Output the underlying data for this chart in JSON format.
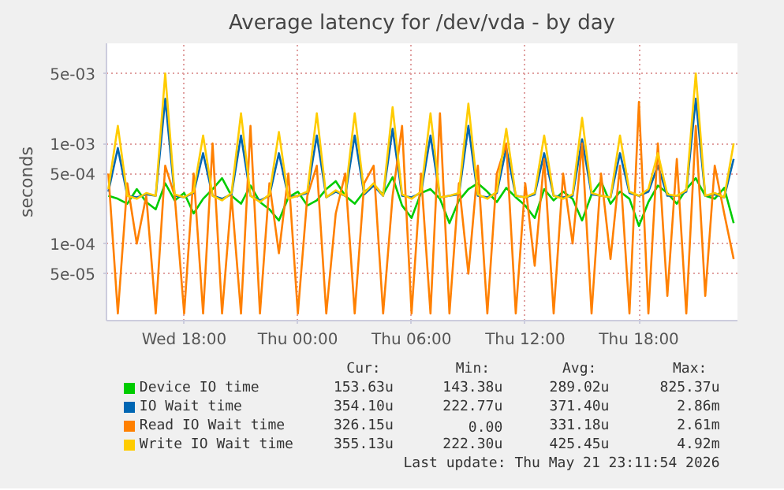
{
  "chart_data": {
    "type": "line",
    "title": "Average latency for /dev/vda - by day",
    "ylabel": "seconds",
    "log": "y",
    "grid": true,
    "legend": "bottom",
    "x": [
      "2026-05-20T14:00",
      "2026-05-20T14:30",
      "2026-05-20T15:00",
      "2026-05-20T15:30",
      "2026-05-20T16:00",
      "2026-05-20T16:30",
      "2026-05-20T17:00",
      "2026-05-20T17:30",
      "2026-05-20T18:00",
      "2026-05-20T18:30",
      "2026-05-20T19:00",
      "2026-05-20T19:30",
      "2026-05-20T20:00",
      "2026-05-20T20:30",
      "2026-05-20T21:00",
      "2026-05-20T21:30",
      "2026-05-20T22:00",
      "2026-05-20T22:30",
      "2026-05-20T23:00",
      "2026-05-20T23:30",
      "2026-05-21T00:00",
      "2026-05-21T00:30",
      "2026-05-21T01:00",
      "2026-05-21T01:30",
      "2026-05-21T02:00",
      "2026-05-21T02:30",
      "2026-05-21T03:00",
      "2026-05-21T03:30",
      "2026-05-21T04:00",
      "2026-05-21T04:30",
      "2026-05-21T05:00",
      "2026-05-21T05:30",
      "2026-05-21T06:00",
      "2026-05-21T06:30",
      "2026-05-21T07:00",
      "2026-05-21T07:30",
      "2026-05-21T08:00",
      "2026-05-21T08:30",
      "2026-05-21T09:00",
      "2026-05-21T09:30",
      "2026-05-21T10:00",
      "2026-05-21T10:30",
      "2026-05-21T11:00",
      "2026-05-21T11:30",
      "2026-05-21T12:00",
      "2026-05-21T12:30",
      "2026-05-21T13:00",
      "2026-05-21T13:30",
      "2026-05-21T14:00",
      "2026-05-21T14:30",
      "2026-05-21T15:00",
      "2026-05-21T15:30",
      "2026-05-21T16:00",
      "2026-05-21T16:30",
      "2026-05-21T17:00",
      "2026-05-21T17:30",
      "2026-05-21T18:00",
      "2026-05-21T18:30",
      "2026-05-21T19:00",
      "2026-05-21T19:30",
      "2026-05-21T20:00",
      "2026-05-21T20:30",
      "2026-05-21T21:00",
      "2026-05-21T21:30",
      "2026-05-21T22:00",
      "2026-05-21T22:30",
      "2026-05-21T23:00"
    ],
    "xlim": [
      "2026-05-20T13:54",
      "2026-05-21T23:12"
    ],
    "xticks": [
      {
        "value": "2026-05-20T18:00",
        "label": "Wed 18:00"
      },
      {
        "value": "2026-05-21T00:00",
        "label": "Thu 00:00"
      },
      {
        "value": "2026-05-21T06:00",
        "label": "Thu 06:00"
      },
      {
        "value": "2026-05-21T12:00",
        "label": "Thu 12:00"
      },
      {
        "value": "2026-05-21T18:00",
        "label": "Thu 18:00"
      }
    ],
    "ylim": [
      1.7e-05,
      0.01
    ],
    "yticks": [
      {
        "value": 5e-05,
        "label": "5e-05"
      },
      {
        "value": 0.0001,
        "label": "1e-04"
      },
      {
        "value": 0.0005,
        "label": "5e-04"
      },
      {
        "value": 0.001,
        "label": "1e-03"
      },
      {
        "value": 0.005,
        "label": "5e-03"
      }
    ],
    "series": [
      {
        "name": "Device IO time",
        "color": "#00cc00",
        "values": [
          0.0003,
          0.00028,
          0.00025,
          0.00035,
          0.00026,
          0.00022,
          0.0004,
          0.00027,
          0.00032,
          0.0002,
          0.00028,
          0.00035,
          0.00045,
          0.0003,
          0.00025,
          0.00038,
          0.00026,
          0.00022,
          0.00017,
          0.00029,
          0.00033,
          0.00024,
          0.00027,
          0.00035,
          0.00042,
          0.0003,
          0.00025,
          0.00033,
          0.00038,
          0.00031,
          0.00046,
          0.00024,
          0.00018,
          0.00032,
          0.00035,
          0.00028,
          0.00016,
          0.00027,
          0.00035,
          0.0004,
          0.00033,
          0.00026,
          0.00036,
          0.00029,
          0.00024,
          0.00018,
          0.00035,
          0.00027,
          0.00033,
          0.00028,
          0.00017,
          0.00031,
          0.00042,
          0.00025,
          0.00033,
          0.00028,
          0.00015,
          0.00026,
          0.00038,
          0.00032,
          0.00025,
          0.00035,
          0.00045,
          0.0003,
          0.00028,
          0.00036,
          0.00016
        ]
      },
      {
        "name": "IO Wait time",
        "color": "#0066b3",
        "values": [
          0.00033,
          0.0009,
          0.0003,
          0.00029,
          0.00031,
          0.0003,
          0.0028,
          0.0003,
          0.00029,
          0.00032,
          0.0008,
          0.0003,
          0.00028,
          0.00031,
          0.0012,
          0.0003,
          0.00027,
          0.0003,
          0.0008,
          0.00029,
          0.0003,
          0.00032,
          0.0012,
          0.00029,
          0.00033,
          0.0003,
          0.0012,
          0.00031,
          0.00038,
          0.0003,
          0.0014,
          0.0003,
          0.00029,
          0.00032,
          0.0012,
          0.00029,
          0.0003,
          0.00031,
          0.0015,
          0.0003,
          0.00029,
          0.00032,
          0.0009,
          0.0003,
          0.00029,
          0.00031,
          0.0008,
          0.0003,
          0.00029,
          0.0003,
          0.0011,
          0.00031,
          0.0003,
          0.00029,
          0.0008,
          0.00032,
          0.0003,
          0.00033,
          0.0006,
          0.0003,
          0.0003,
          0.00033,
          0.0028,
          0.0003,
          0.00031,
          0.00029,
          0.0007
        ]
      },
      {
        "name": "Read IO Wait time",
        "color": "#ff8000",
        "values": [
          0.0005,
          2e-05,
          0.0004,
          0.0001,
          0.0003,
          2e-05,
          0.0006,
          0.0003,
          2e-05,
          0.0005,
          2e-05,
          0.001,
          2e-05,
          0.0003,
          2e-05,
          0.0015,
          2e-05,
          0.0004,
          8e-05,
          0.0005,
          2e-05,
          0.0003,
          0.0006,
          2e-05,
          0.0002,
          0.0005,
          2e-05,
          0.0004,
          0.0006,
          2e-05,
          0.0003,
          0.0015,
          2e-05,
          0.0005,
          2e-05,
          0.002,
          2e-05,
          0.0004,
          5e-05,
          0.0006,
          2e-05,
          0.0005,
          0.001,
          2e-05,
          0.0004,
          6e-05,
          0.0007,
          2e-05,
          0.0005,
          0.0001,
          0.001,
          2e-05,
          0.0005,
          7e-05,
          0.0006,
          2e-05,
          0.0026,
          2e-05,
          0.001,
          3e-05,
          0.0007,
          2e-05,
          0.0015,
          3e-05,
          0.0006,
          0.0002,
          7e-05
        ]
      },
      {
        "name": "Write IO Wait time",
        "color": "#ffcc00",
        "values": [
          0.00035,
          0.0015,
          0.0003,
          0.00028,
          0.00032,
          0.0003,
          0.005,
          0.00031,
          0.00029,
          0.00033,
          0.0012,
          0.0003,
          0.00027,
          0.00032,
          0.002,
          0.0003,
          0.00026,
          0.00031,
          0.0013,
          0.00028,
          0.0003,
          0.00033,
          0.002,
          0.00029,
          0.00034,
          0.0003,
          0.002,
          0.00032,
          0.0004,
          0.0003,
          0.0023,
          0.00031,
          0.00028,
          0.00033,
          0.002,
          0.00029,
          0.0003,
          0.00032,
          0.0025,
          0.00031,
          0.00028,
          0.00033,
          0.0014,
          0.0003,
          0.00029,
          0.00032,
          0.0012,
          0.0003,
          0.00028,
          0.00031,
          0.0018,
          0.00032,
          0.0003,
          0.00029,
          0.0012,
          0.00033,
          0.0003,
          0.00035,
          0.0008,
          0.00031,
          0.0003,
          0.00034,
          0.005,
          0.0003,
          0.00032,
          0.00029,
          0.001
        ]
      }
    ],
    "annotations": [
      "Cur:",
      "Min:",
      "Avg:",
      "Max:",
      "153.63u",
      "143.38u",
      "289.02u",
      "825.37u",
      "354.10u",
      "222.77u",
      "371.40u",
      "2.86m",
      "326.15u",
      "0.00",
      "331.18u",
      "2.61m",
      "355.13u",
      "222.30u",
      "425.45u",
      "4.92m",
      "Last update: Thu May 21 23:11:54 2026"
    ]
  }
}
